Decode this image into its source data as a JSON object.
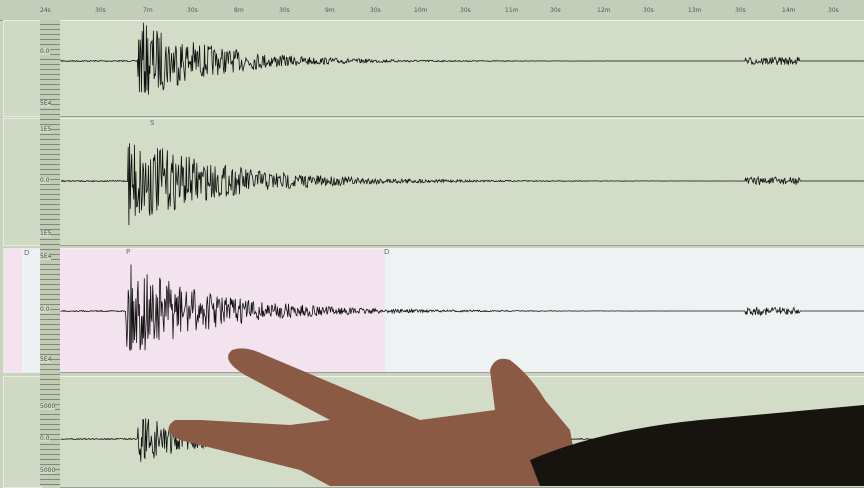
{
  "time_axis": {
    "labels": [
      "24s",
      "30s",
      "7m",
      "30s",
      "8m",
      "30s",
      "9m",
      "30s",
      "10m",
      "30s",
      "11m",
      "30s",
      "12m",
      "30s",
      "13m",
      "30s",
      "14m",
      "30s"
    ]
  },
  "channels": [
    {
      "scale_top": "",
      "scale_mid": "0.0",
      "scale_bottom": "5E4",
      "marker": ""
    },
    {
      "scale_top": "1E5",
      "scale_mid": "0.0",
      "scale_bottom": "1E5",
      "marker": "S"
    },
    {
      "scale_top": "5E4",
      "scale_mid": "0.0",
      "scale_bottom": "5E4",
      "marker": "P",
      "marker2": "D",
      "side_marker": "D"
    },
    {
      "scale_top": "5000",
      "scale_mid": "0.0",
      "scale_bottom": "5000",
      "marker": ""
    }
  ],
  "colors": {
    "screen": "#d3dcc7",
    "selection": "#f3e4ef",
    "trace": "#111111",
    "skin": "#8a5a45"
  }
}
